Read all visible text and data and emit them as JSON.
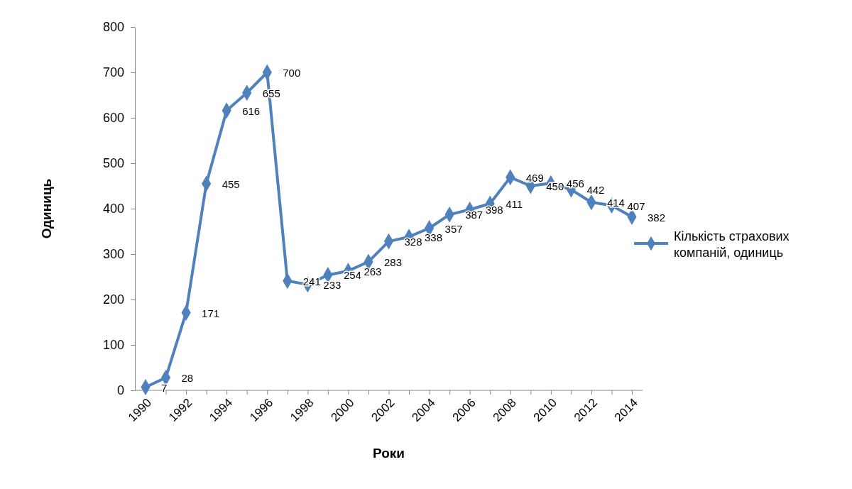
{
  "chart_data": {
    "type": "line",
    "xlabel": "Роки",
    "ylabel": "Одиниць",
    "categories": [
      "1990",
      null,
      "1992",
      null,
      "1994",
      null,
      "1996",
      null,
      "1998",
      null,
      "2000",
      null,
      "2002",
      null,
      "2004",
      null,
      "2006",
      null,
      "2008",
      null,
      "2010",
      null,
      "2012",
      null,
      "2014"
    ],
    "series": [
      {
        "name": "Кількість страхових компаній, одиниць",
        "color": "#4f81bd",
        "values": [
          7,
          28,
          171,
          455,
          616,
          655,
          700,
          241,
          233,
          254,
          263,
          283,
          328,
          338,
          357,
          387,
          398,
          411,
          469,
          450,
          456,
          442,
          414,
          407,
          382
        ]
      }
    ],
    "ylim": [
      0,
      800
    ],
    "yticks": [
      0,
      100,
      200,
      300,
      400,
      500,
      600,
      700,
      800
    ],
    "grid": false,
    "legend": "right",
    "marker": "diamond",
    "line_style": "solid",
    "data_labels": true
  }
}
